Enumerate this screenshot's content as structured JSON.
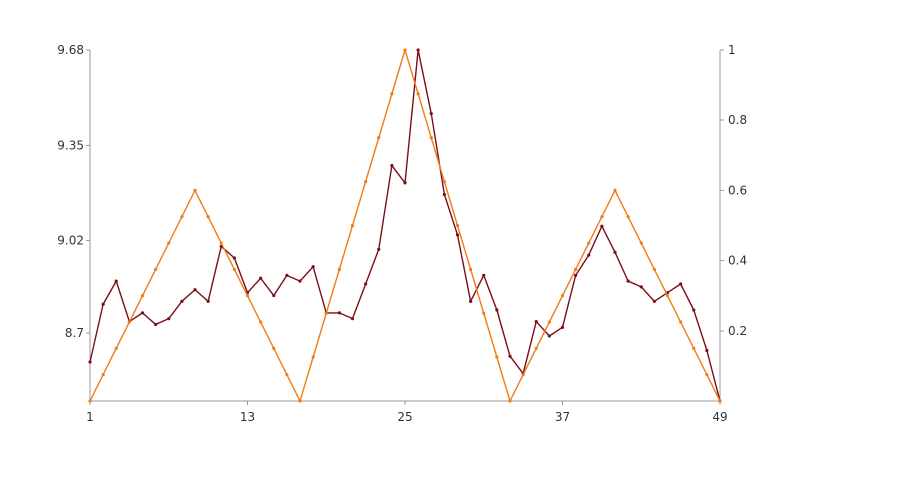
{
  "chart_data": {
    "type": "line",
    "title": "",
    "xlabel": "",
    "ylabel_left": "",
    "ylabel_right": "",
    "grid": false,
    "legend": "none",
    "x": [
      1,
      2,
      3,
      4,
      5,
      6,
      7,
      8,
      9,
      10,
      11,
      12,
      13,
      14,
      15,
      16,
      17,
      18,
      19,
      20,
      21,
      22,
      23,
      24,
      25,
      26,
      27,
      28,
      29,
      30,
      31,
      32,
      33,
      34,
      35,
      36,
      37,
      38,
      39,
      40,
      41,
      42,
      43,
      44,
      45,
      46,
      47,
      48,
      49
    ],
    "x_ticks": [
      "1",
      "13",
      "25",
      "37",
      "49"
    ],
    "x_tick_values": [
      1,
      13,
      25,
      37,
      49
    ],
    "xlim": [
      1,
      49
    ],
    "y_left_ticks": [
      "8.7",
      "9.02",
      "9.35",
      "9.68"
    ],
    "y_left_tick_values": [
      8.7,
      9.02,
      9.35,
      9.68
    ],
    "y_left_lim": [
      8.465,
      9.68
    ],
    "y_right_ticks": [
      "0.2",
      "0.4",
      "0.6",
      "0.8",
      "1"
    ],
    "y_right_tick_values": [
      0.2,
      0.4,
      0.6,
      0.8,
      1
    ],
    "y_right_lim": [
      0,
      1
    ],
    "series": [
      {
        "axis": "left",
        "color": "#7b0f17",
        "values": [
          8.6,
          8.8,
          8.88,
          8.74,
          8.77,
          8.73,
          8.75,
          8.81,
          8.85,
          8.81,
          9.0,
          8.96,
          8.84,
          8.89,
          8.83,
          8.9,
          8.88,
          8.93,
          8.77,
          8.77,
          8.75,
          8.87,
          8.99,
          9.28,
          9.22,
          9.68,
          9.46,
          9.18,
          9.04,
          8.81,
          8.9,
          8.78,
          8.62,
          8.56,
          8.74,
          8.69,
          8.72,
          8.9,
          8.97,
          9.07,
          8.98,
          8.88,
          8.86,
          8.81,
          8.84,
          8.87,
          8.78,
          8.64,
          8.465
        ]
      },
      {
        "axis": "right",
        "color": "#f07c19",
        "values": [
          0,
          0.075,
          0.15,
          0.225,
          0.3,
          0.375,
          0.45,
          0.525,
          0.6,
          0.525,
          0.45,
          0.375,
          0.3,
          0.225,
          0.15,
          0.075,
          0,
          0.125,
          0.25,
          0.375,
          0.5,
          0.625,
          0.75,
          0.875,
          1,
          0.875,
          0.75,
          0.625,
          0.5,
          0.375,
          0.25,
          0.125,
          0,
          0.075,
          0.15,
          0.225,
          0.3,
          0.375,
          0.45,
          0.525,
          0.6,
          0.525,
          0.45,
          0.375,
          0.3,
          0.225,
          0.15,
          0.075,
          0
        ]
      }
    ]
  }
}
